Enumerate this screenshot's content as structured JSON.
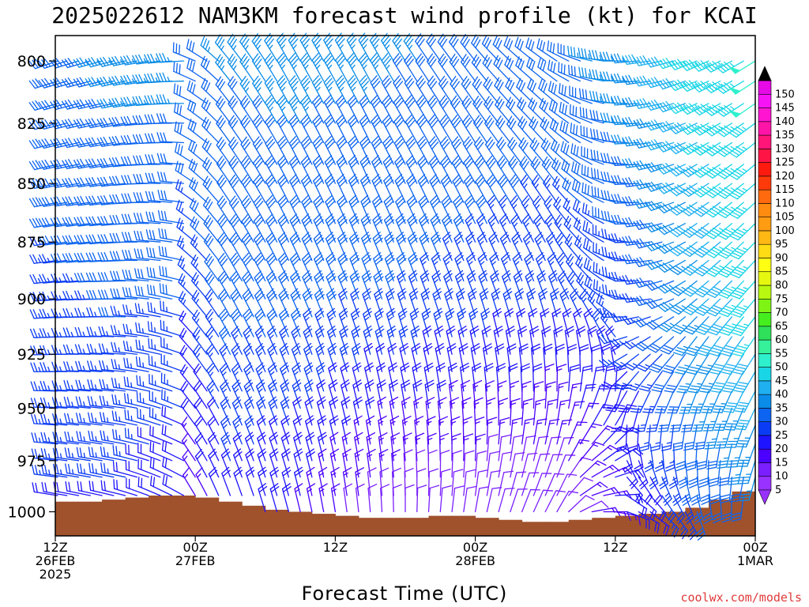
{
  "chart_data": {
    "type": "wind-barb",
    "title": "2025022612 NAM3KM forecast wind profile (kt) for KCAI",
    "xlabel": "Forecast Time (UTC)",
    "credit": "coolwx.com/models",
    "xlim": [
      0,
      60
    ],
    "ylim": [
      1012,
      790
    ],
    "yscale": "log",
    "x_ticks": [
      {
        "hour": 0,
        "lines": [
          "12Z",
          "26FEB",
          "2025"
        ]
      },
      {
        "hour": 12,
        "lines": [
          "00Z",
          "27FEB"
        ]
      },
      {
        "hour": 24,
        "lines": [
          "12Z"
        ]
      },
      {
        "hour": 36,
        "lines": [
          "00Z",
          "28FEB"
        ]
      },
      {
        "hour": 48,
        "lines": [
          "12Z"
        ]
      },
      {
        "hour": 60,
        "lines": [
          "00Z",
          "1MAR"
        ]
      }
    ],
    "y_ticks": [
      800,
      825,
      850,
      875,
      900,
      925,
      950,
      975,
      1000
    ],
    "colorbar": {
      "min": 5,
      "max": 150,
      "step": 5,
      "labels": [
        5,
        10,
        15,
        20,
        25,
        30,
        35,
        40,
        45,
        50,
        55,
        60,
        65,
        70,
        75,
        80,
        85,
        90,
        95,
        100,
        105,
        110,
        115,
        120,
        125,
        130,
        135,
        140,
        145,
        150
      ],
      "colors": [
        "#9932ff",
        "#7a1fff",
        "#4b00ff",
        "#1e14ff",
        "#0b3cf5",
        "#0c64f0",
        "#0a8ce8",
        "#1eb0f0",
        "#19d6e6",
        "#2ef0cc",
        "#36f09a",
        "#2ee05a",
        "#46ee20",
        "#7ef414",
        "#b8f810",
        "#e6f810",
        "#ffff14",
        "#ffdc14",
        "#ffb814",
        "#ff9c12",
        "#ff8c10",
        "#ff6a0e",
        "#ff3a0a",
        "#ff1a10",
        "#ff1446",
        "#ff1478",
        "#ff14a8",
        "#ff14d2",
        "#f614f6",
        "#e60ae6"
      ],
      "over_color": "#000000",
      "under_color": "#9932ff"
    },
    "terrain": {
      "color": "#a0522d",
      "surface_pressure": [
        {
          "hour": 0,
          "p": 995
        },
        {
          "hour": 2,
          "p": 995
        },
        {
          "hour": 4,
          "p": 994
        },
        {
          "hour": 6,
          "p": 993
        },
        {
          "hour": 8,
          "p": 992
        },
        {
          "hour": 10,
          "p": 992
        },
        {
          "hour": 12,
          "p": 993
        },
        {
          "hour": 14,
          "p": 995
        },
        {
          "hour": 16,
          "p": 997
        },
        {
          "hour": 18,
          "p": 999
        },
        {
          "hour": 20,
          "p": 1000
        },
        {
          "hour": 22,
          "p": 1001
        },
        {
          "hour": 24,
          "p": 1002
        },
        {
          "hour": 26,
          "p": 1003
        },
        {
          "hour": 28,
          "p": 1003
        },
        {
          "hour": 30,
          "p": 1003
        },
        {
          "hour": 32,
          "p": 1002
        },
        {
          "hour": 34,
          "p": 1002
        },
        {
          "hour": 36,
          "p": 1003
        },
        {
          "hour": 38,
          "p": 1004
        },
        {
          "hour": 40,
          "p": 1005
        },
        {
          "hour": 42,
          "p": 1005
        },
        {
          "hour": 44,
          "p": 1004
        },
        {
          "hour": 46,
          "p": 1003
        },
        {
          "hour": 48,
          "p": 1002
        },
        {
          "hour": 50,
          "p": 1001
        },
        {
          "hour": 52,
          "p": 1000
        },
        {
          "hour": 54,
          "p": 998
        },
        {
          "hour": 56,
          "p": 994
        },
        {
          "hour": 58,
          "p": 990
        },
        {
          "hour": 60,
          "p": 989
        }
      ]
    },
    "barb_hour_step": 1,
    "barb_levels": [
      790,
      800,
      808,
      817,
      825,
      833,
      842,
      850,
      858,
      867,
      875,
      883,
      892,
      900,
      908,
      917,
      925,
      933,
      942,
      950,
      958,
      967,
      975,
      983,
      992,
      1000
    ],
    "wind_keyframes": [
      {
        "hour": 0,
        "low": {
          "dir": 280,
          "spd": 22
        },
        "mid": {
          "dir": 265,
          "spd": 26
        },
        "high": {
          "dir": 250,
          "spd": 32
        }
      },
      {
        "hour": 6,
        "low": {
          "dir": 285,
          "spd": 22
        },
        "mid": {
          "dir": 270,
          "spd": 28
        },
        "high": {
          "dir": 255,
          "spd": 34
        }
      },
      {
        "hour": 11,
        "low": {
          "dir": 300,
          "spd": 18
        },
        "mid": {
          "dir": 285,
          "spd": 28
        },
        "high": {
          "dir": 265,
          "spd": 34
        }
      },
      {
        "hour": 12,
        "low": {
          "dir": 330,
          "spd": 14
        },
        "mid": {
          "dir": 315,
          "spd": 24
        },
        "high": {
          "dir": 290,
          "spd": 33
        }
      },
      {
        "hour": 15,
        "low": {
          "dir": 340,
          "spd": 20
        },
        "mid": {
          "dir": 330,
          "spd": 30
        },
        "high": {
          "dir": 320,
          "spd": 33
        }
      },
      {
        "hour": 20,
        "low": {
          "dir": 345,
          "spd": 18
        },
        "mid": {
          "dir": 335,
          "spd": 30
        },
        "high": {
          "dir": 330,
          "spd": 34
        }
      },
      {
        "hour": 27,
        "low": {
          "dir": 355,
          "spd": 10
        },
        "mid": {
          "dir": 340,
          "spd": 28
        },
        "high": {
          "dir": 330,
          "spd": 34
        }
      },
      {
        "hour": 36,
        "low": {
          "dir": 10,
          "spd": 8
        },
        "mid": {
          "dir": 340,
          "spd": 26
        },
        "high": {
          "dir": 320,
          "spd": 32
        }
      },
      {
        "hour": 43,
        "low": {
          "dir": 30,
          "spd": 8
        },
        "mid": {
          "dir": 340,
          "spd": 24
        },
        "high": {
          "dir": 300,
          "spd": 32
        }
      },
      {
        "hour": 46,
        "low": {
          "dir": 80,
          "spd": 14
        },
        "mid": {
          "dir": 320,
          "spd": 24
        },
        "high": {
          "dir": 280,
          "spd": 34
        }
      },
      {
        "hour": 50,
        "low": {
          "dir": 120,
          "spd": 20
        },
        "mid": {
          "dir": 270,
          "spd": 24
        },
        "high": {
          "dir": 265,
          "spd": 38
        }
      },
      {
        "hour": 55,
        "low": {
          "dir": 160,
          "spd": 28
        },
        "mid": {
          "dir": 230,
          "spd": 36
        },
        "high": {
          "dir": 250,
          "spd": 45
        }
      },
      {
        "hour": 60,
        "low": {
          "dir": 190,
          "spd": 30
        },
        "mid": {
          "dir": 220,
          "spd": 46
        },
        "high": {
          "dir": 240,
          "spd": 48
        }
      }
    ],
    "grid": false,
    "legend": "right-colorbar"
  }
}
